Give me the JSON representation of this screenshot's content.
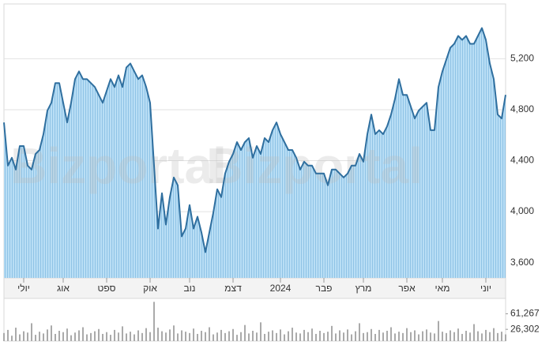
{
  "chart_data": [
    {
      "type": "area",
      "watermark": "Bizportal",
      "color": "#2f6f9f",
      "fill": "#aed7f2",
      "xlim": [
        0,
        127
      ],
      "xticks": [
        {
          "value": 5,
          "label": "יולי"
        },
        {
          "value": 15,
          "label": "אוג"
        },
        {
          "value": 26,
          "label": "ספט"
        },
        {
          "value": 37,
          "label": "אוק"
        },
        {
          "value": 47,
          "label": "נוב"
        },
        {
          "value": 58,
          "label": "דצמ"
        },
        {
          "value": 70,
          "label": "2024"
        },
        {
          "value": 81,
          "label": "פבר"
        },
        {
          "value": 91,
          "label": "מרץ"
        },
        {
          "value": 102,
          "label": "אפר"
        },
        {
          "value": 111,
          "label": "מאי"
        },
        {
          "value": 122,
          "label": "יוני"
        }
      ],
      "ylim": [
        3480,
        5630
      ],
      "yticks": [
        {
          "value": 3600,
          "label": "3,600"
        },
        {
          "value": 4000,
          "label": "4,000"
        },
        {
          "value": 4400,
          "label": "4,400"
        },
        {
          "value": 4800,
          "label": "4,800"
        },
        {
          "value": 5200,
          "label": "5,200"
        }
      ],
      "grid": true,
      "values": [
        4700,
        4361,
        4423,
        4330,
        4515,
        4515,
        4361,
        4330,
        4453,
        4484,
        4608,
        4793,
        4854,
        5009,
        5009,
        4854,
        4700,
        4854,
        5040,
        5101,
        5040,
        5040,
        5009,
        4978,
        4916,
        4854,
        4947,
        5040,
        4978,
        5070,
        4978,
        5132,
        5163,
        5101,
        5040,
        5070,
        4978,
        4854,
        4361,
        3867,
        4145,
        3898,
        4114,
        4268,
        4207,
        3806,
        3867,
        4052,
        3867,
        3960,
        3836,
        3682,
        3836,
        3991,
        4176,
        4114,
        4299,
        4392,
        4453,
        4546,
        4484,
        4546,
        4577,
        4423,
        4515,
        4453,
        4577,
        4546,
        4639,
        4700,
        4608,
        4546,
        4484,
        4484,
        4423,
        4330,
        4392,
        4361,
        4361,
        4299,
        4299,
        4299,
        4207,
        4330,
        4330,
        4299,
        4268,
        4299,
        4361,
        4361,
        4453,
        4392,
        4608,
        4762,
        4608,
        4639,
        4608,
        4669,
        4762,
        4885,
        5040,
        4916,
        4916,
        4824,
        4731,
        4793,
        4824,
        4854,
        4639,
        4639,
        4978,
        5101,
        5194,
        5286,
        5317,
        5379,
        5348,
        5379,
        5317,
        5317,
        5379,
        5441,
        5348,
        5163,
        5040,
        4762,
        4731,
        4916
      ]
    },
    {
      "type": "bar",
      "color": "#aaaaaa",
      "xlim": [
        0,
        127
      ],
      "ylim": [
        0,
        95700
      ],
      "yticks": [
        {
          "value": 61267,
          "label": "61,267"
        },
        {
          "value": 26302,
          "label": "26,302"
        }
      ],
      "values": [
        18000,
        25000,
        12000,
        30000,
        15000,
        22000,
        19000,
        40000,
        14000,
        21000,
        17000,
        26000,
        35000,
        16000,
        23000,
        20000,
        28000,
        13000,
        19000,
        24000,
        31000,
        15000,
        18000,
        22000,
        27000,
        16000,
        20000,
        14000,
        25000,
        19000,
        33000,
        17000,
        21000,
        15000,
        24000,
        18000,
        29000,
        20000,
        88000,
        30000,
        22000,
        19000,
        26000,
        35000,
        17000,
        24000,
        21000,
        18000,
        28000,
        16000,
        23000,
        20000,
        31000,
        15000,
        19000,
        25000,
        18000,
        22000,
        27000,
        14000,
        20000,
        36000,
        17000,
        23000,
        19000,
        42000,
        16000,
        21000,
        24000,
        18000,
        26000,
        15000,
        22000,
        30000,
        19000,
        17000,
        25000,
        20000,
        28000,
        16000,
        23000,
        18000,
        21000,
        34000,
        17000,
        24000,
        19000,
        26000,
        15000,
        22000,
        40000,
        18000,
        20000,
        27000,
        16000,
        25000,
        19000,
        23000,
        31000,
        17000,
        21000,
        18000,
        29000,
        20000,
        24000,
        15000,
        22000,
        26000,
        19000,
        17000,
        45000,
        21000,
        18000,
        24000,
        20000,
        28000,
        16000,
        23000,
        19000,
        38000,
        22000,
        17000,
        25000,
        20000,
        29000,
        18000,
        21000,
        15000
      ]
    }
  ]
}
